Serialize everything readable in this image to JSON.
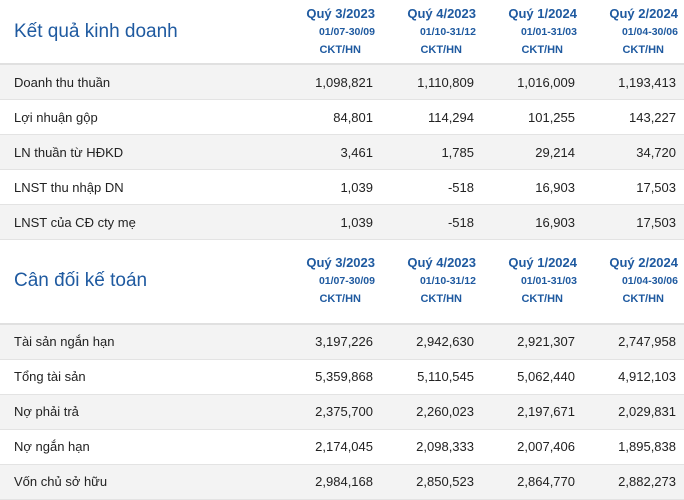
{
  "sections": [
    {
      "title": "Kết quả kinh doanh",
      "columns": [
        {
          "quarter": "Quý 3/2023",
          "range": "01/07-30/09",
          "unit": "CKT/HN"
        },
        {
          "quarter": "Quý 4/2023",
          "range": "01/10-31/12",
          "unit": "CKT/HN"
        },
        {
          "quarter": "Quý 1/2024",
          "range": "01/01-31/03",
          "unit": "CKT/HN"
        },
        {
          "quarter": "Quý 2/2024",
          "range": "01/04-30/06",
          "unit": "CKT/HN"
        }
      ],
      "rows": [
        {
          "label": "Doanh thu thuần",
          "values": [
            "1,098,821",
            "1,110,809",
            "1,016,009",
            "1,193,413"
          ]
        },
        {
          "label": "Lợi nhuận gộp",
          "values": [
            "84,801",
            "114,294",
            "101,255",
            "143,227"
          ]
        },
        {
          "label": "LN thuần từ HĐKD",
          "values": [
            "3,461",
            "1,785",
            "29,214",
            "34,720"
          ]
        },
        {
          "label": "LNST thu nhập DN",
          "values": [
            "1,039",
            "-518",
            "16,903",
            "17,503"
          ]
        },
        {
          "label": "LNST của CĐ cty mẹ",
          "values": [
            "1,039",
            "-518",
            "16,903",
            "17,503"
          ]
        }
      ]
    },
    {
      "title": "Cân đối kế toán",
      "columns": [
        {
          "quarter": "Quý 3/2023",
          "range": "01/07-30/09",
          "unit": "CKT/HN"
        },
        {
          "quarter": "Quý 4/2023",
          "range": "01/10-31/12",
          "unit": "CKT/HN"
        },
        {
          "quarter": "Quý 1/2024",
          "range": "01/01-31/03",
          "unit": "CKT/HN"
        },
        {
          "quarter": "Quý 2/2024",
          "range": "01/04-30/06",
          "unit": "CKT/HN"
        }
      ],
      "rows": [
        {
          "label": "Tài sản ngắn hạn",
          "values": [
            "3,197,226",
            "2,942,630",
            "2,921,307",
            "2,747,958"
          ]
        },
        {
          "label": "Tổng tài sản",
          "values": [
            "5,359,868",
            "5,110,545",
            "5,062,440",
            "4,912,103"
          ]
        },
        {
          "label": "Nợ phải trả",
          "values": [
            "2,375,700",
            "2,260,023",
            "2,197,671",
            "2,029,831"
          ]
        },
        {
          "label": "Nợ ngắn hạn",
          "values": [
            "2,174,045",
            "2,098,333",
            "2,007,406",
            "1,895,838"
          ]
        },
        {
          "label": "Vốn chủ sở hữu",
          "values": [
            "2,984,168",
            "2,850,523",
            "2,864,770",
            "2,882,273"
          ]
        }
      ]
    }
  ]
}
